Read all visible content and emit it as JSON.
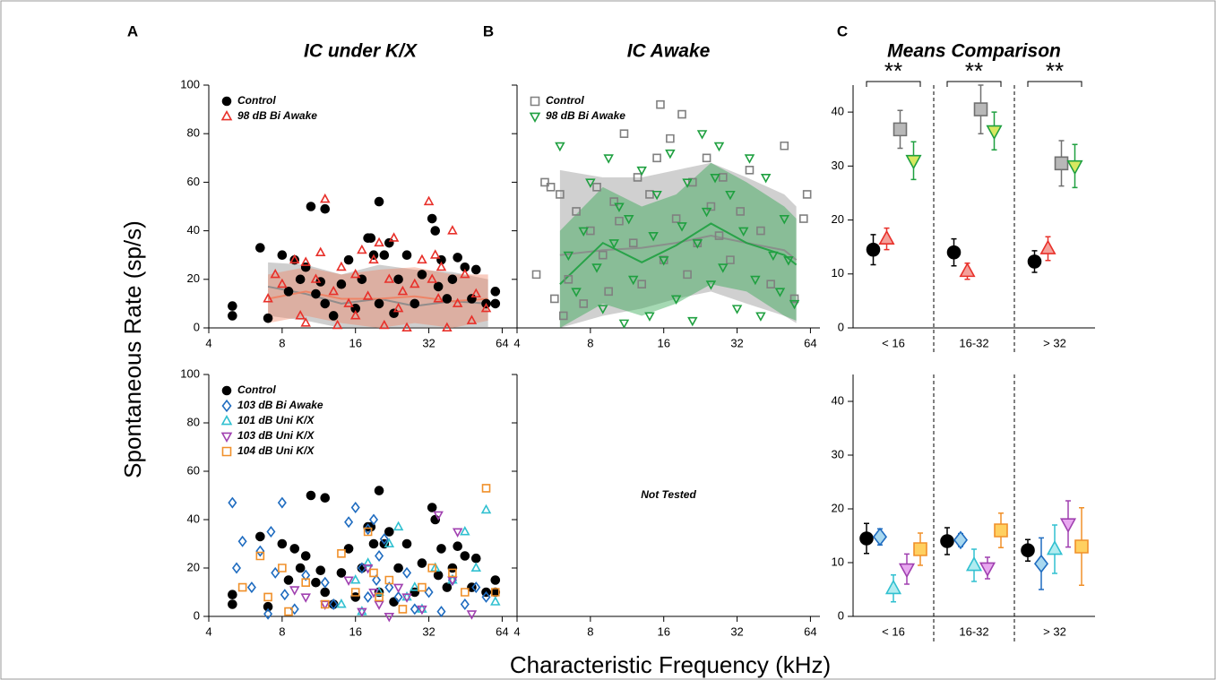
{
  "figure": {
    "ylabel": "Spontaneous Rate (sp/s)",
    "xlabel": "Characteristic Frequency (kHz)"
  },
  "chart_data": [
    {
      "type": "scatter",
      "panel_label": "A",
      "title": "IC under K/X",
      "xscale": "log",
      "xlim": [
        4,
        70
      ],
      "xticks": [
        4,
        8,
        16,
        32,
        64
      ],
      "ylim": [
        0,
        100
      ],
      "yticks": [
        0,
        20,
        40,
        60,
        80,
        100
      ],
      "legend": "upper left",
      "bands": [
        {
          "color": "#888888",
          "x": [
            7,
            10,
            14,
            20,
            28,
            40,
            56
          ],
          "values": [
            17,
            14,
            10,
            12,
            9,
            11,
            10
          ],
          "lower": [
            5,
            3,
            0,
            0,
            0,
            0,
            0
          ],
          "upper": [
            27,
            26,
            22,
            26,
            24,
            23,
            20
          ]
        },
        {
          "color": "#f08060",
          "x": [
            7,
            10,
            14,
            20,
            28,
            40,
            56
          ],
          "values": [
            12,
            15,
            12,
            12,
            13,
            11,
            12
          ],
          "lower": [
            2,
            5,
            2,
            0,
            2,
            0,
            3
          ],
          "upper": [
            22,
            25,
            22,
            24,
            25,
            22,
            22
          ]
        }
      ],
      "series": [
        {
          "name": "Control",
          "marker": "circle",
          "color": "#000000",
          "facecolor": "#000000",
          "x": [
            5,
            5,
            6.5,
            7,
            8,
            8.5,
            9,
            9.5,
            10,
            10.5,
            11,
            11.5,
            12,
            12,
            13,
            14,
            15,
            16,
            17,
            18,
            18.5,
            19,
            20,
            20,
            21,
            22,
            23,
            24,
            26,
            28,
            30,
            33,
            34,
            35,
            36,
            38,
            40,
            42,
            45,
            48,
            50,
            55,
            60,
            60
          ],
          "values": [
            9,
            5,
            33,
            4,
            30,
            15,
            28,
            20,
            25,
            50,
            14,
            19,
            49,
            10,
            5,
            18,
            28,
            8,
            20,
            37,
            37,
            30,
            52,
            10,
            30,
            35,
            6,
            20,
            30,
            10,
            22,
            45,
            40,
            17,
            28,
            12,
            20,
            29,
            25,
            12,
            24,
            10,
            15,
            10
          ]
        },
        {
          "name": "98 dB Bi Awake",
          "marker": "triangle-up",
          "color": "#e8302a",
          "facecolor": "none",
          "x": [
            7,
            7.5,
            8,
            9,
            9.5,
            10,
            10,
            11,
            11.5,
            12,
            13,
            13.5,
            14,
            15,
            16,
            16,
            17,
            18,
            19,
            20,
            21,
            22,
            23,
            24,
            25,
            26,
            28,
            30,
            32,
            33,
            34,
            35,
            36,
            38,
            40,
            42,
            45,
            48,
            50,
            55
          ],
          "values": [
            12,
            22,
            18,
            28,
            5,
            27,
            2,
            20,
            31,
            53,
            15,
            1,
            25,
            10,
            22,
            5,
            32,
            13,
            28,
            35,
            1,
            20,
            37,
            8,
            15,
            0,
            18,
            28,
            52,
            20,
            30,
            12,
            25,
            0,
            40,
            10,
            22,
            3,
            14,
            8
          ]
        }
      ]
    },
    {
      "type": "scatter",
      "panel_label": "B",
      "title": "IC Awake",
      "xscale": "log",
      "xlim": [
        4,
        70
      ],
      "xticks": [
        4,
        8,
        16,
        32,
        64
      ],
      "ylim": [
        0,
        100
      ],
      "yticks": [
        0,
        20,
        40,
        60,
        80,
        100
      ],
      "ytick_labels": false,
      "legend": "upper left",
      "bands": [
        {
          "color": "#8a8a8a",
          "x": [
            6,
            9,
            13,
            18,
            25,
            35,
            50,
            56
          ],
          "values": [
            30,
            32,
            33,
            35,
            38,
            35,
            32,
            28
          ],
          "lower": [
            0,
            5,
            8,
            12,
            15,
            10,
            5,
            2
          ],
          "upper": [
            65,
            62,
            62,
            65,
            68,
            62,
            55,
            50
          ]
        },
        {
          "color": "#1fa040",
          "x": [
            6,
            9,
            13,
            18,
            25,
            35,
            50,
            56
          ],
          "values": [
            18,
            35,
            27,
            34,
            43,
            35,
            30,
            26
          ],
          "lower": [
            0,
            10,
            5,
            10,
            18,
            15,
            5,
            3
          ],
          "upper": [
            40,
            58,
            50,
            55,
            68,
            60,
            50,
            45
          ]
        }
      ],
      "series": [
        {
          "name": "Control",
          "marker": "square",
          "color": "#808080",
          "facecolor": "none",
          "x": [
            4.8,
            5.2,
            5.5,
            5.7,
            6,
            6.2,
            6.5,
            7,
            7.5,
            8,
            8.5,
            9,
            9.5,
            10,
            10.5,
            11,
            12,
            12.5,
            13,
            14,
            15,
            15.5,
            16,
            17,
            18,
            19,
            20,
            21,
            22,
            24,
            25,
            27,
            28,
            30,
            33,
            36,
            40,
            44,
            50,
            55,
            60,
            62
          ],
          "values": [
            22,
            60,
            58,
            12,
            55,
            5,
            20,
            48,
            10,
            40,
            58,
            30,
            15,
            52,
            44,
            80,
            35,
            62,
            18,
            55,
            70,
            92,
            28,
            78,
            45,
            88,
            22,
            60,
            35,
            70,
            50,
            38,
            62,
            28,
            48,
            65,
            40,
            18,
            75,
            12,
            45,
            55
          ]
        },
        {
          "name": "98 dB Bi Awake",
          "marker": "triangle-down",
          "color": "#1fa040",
          "facecolor": "none",
          "x": [
            6,
            6.5,
            7,
            7.5,
            8,
            8.5,
            9,
            9.5,
            10,
            10.5,
            11,
            11.5,
            12,
            13,
            14,
            14.5,
            15,
            16,
            17,
            18,
            19,
            20,
            21,
            22,
            23,
            24,
            25,
            26,
            27,
            28,
            30,
            32,
            34,
            36,
            38,
            40,
            42,
            45,
            48,
            50,
            52,
            55
          ],
          "values": [
            75,
            30,
            15,
            40,
            60,
            25,
            8,
            70,
            35,
            50,
            2,
            45,
            20,
            65,
            5,
            38,
            55,
            28,
            72,
            12,
            42,
            60,
            3,
            35,
            80,
            48,
            18,
            62,
            75,
            25,
            55,
            8,
            40,
            70,
            20,
            5,
            62,
            30,
            15,
            45,
            28,
            10
          ]
        }
      ]
    },
    {
      "type": "means",
      "panel_label": "C",
      "title": "Means Comparison",
      "categories": [
        "< 16",
        "16-32",
        "> 32"
      ],
      "ylim": [
        0,
        45
      ],
      "yticks": [
        0,
        10,
        20,
        30,
        40
      ],
      "significance": [
        "**",
        "**",
        "**"
      ],
      "series": [
        {
          "marker": "circle",
          "color": "#000000",
          "facecolor": "#000000",
          "values": [
            14.5,
            14,
            12.3
          ],
          "errors": [
            2.8,
            2.5,
            2
          ]
        },
        {
          "marker": "triangle-up",
          "color": "#e8302a",
          "facecolor": "#f4a09a",
          "values": [
            16.5,
            10.5,
            14.7
          ],
          "errors": [
            2,
            1.5,
            2.2
          ]
        },
        {
          "marker": "square",
          "color": "#707070",
          "facecolor": "#b8b8b8",
          "values": [
            36.8,
            40.5,
            30.5
          ],
          "errors": [
            3.5,
            4.5,
            4.2
          ]
        },
        {
          "marker": "triangle-down",
          "color": "#1fa040",
          "facecolor": "#d8e860",
          "values": [
            31,
            36.5,
            30
          ],
          "errors": [
            3.5,
            3.5,
            4
          ]
        }
      ]
    },
    {
      "type": "scatter",
      "xscale": "log",
      "xlim": [
        4,
        70
      ],
      "xticks": [
        4,
        8,
        16,
        32,
        64
      ],
      "ylim": [
        0,
        100
      ],
      "yticks": [
        0,
        20,
        40,
        60,
        80,
        100
      ],
      "legend": "upper left",
      "series": [
        {
          "name": "Control",
          "marker": "circle",
          "color": "#000000",
          "facecolor": "#000000",
          "x": [
            5,
            5,
            6.5,
            7,
            8,
            8.5,
            9,
            9.5,
            10,
            10.5,
            11,
            11.5,
            12,
            12,
            13,
            14,
            15,
            16,
            17,
            18,
            18.5,
            19,
            20,
            20,
            21,
            22,
            23,
            24,
            26,
            28,
            30,
            33,
            34,
            35,
            36,
            38,
            40,
            42,
            45,
            48,
            50,
            55,
            60,
            60
          ],
          "values": [
            9,
            5,
            33,
            4,
            30,
            15,
            28,
            20,
            25,
            50,
            14,
            19,
            49,
            10,
            5,
            18,
            28,
            8,
            20,
            37,
            37,
            30,
            52,
            10,
            30,
            35,
            6,
            20,
            30,
            10,
            22,
            45,
            40,
            17,
            28,
            12,
            20,
            29,
            25,
            12,
            24,
            10,
            15,
            10
          ]
        },
        {
          "name": "103 dB Bi Awake",
          "marker": "diamond",
          "color": "#1f6cc0",
          "facecolor": "none",
          "x": [
            5,
            5.2,
            5.5,
            6,
            6.5,
            7,
            7.2,
            7.5,
            8,
            8.2,
            9,
            10,
            12,
            13,
            15,
            16,
            17,
            18,
            18,
            19,
            19.5,
            20,
            21,
            22,
            24,
            26,
            28,
            32,
            36,
            40,
            45,
            50,
            55
          ],
          "values": [
            47,
            20,
            31,
            12,
            27,
            1,
            35,
            18,
            47,
            9,
            3,
            17,
            14,
            5,
            39,
            45,
            20,
            36,
            8,
            40,
            15,
            25,
            32,
            12,
            8,
            18,
            3,
            10,
            2,
            15,
            5,
            12,
            8
          ]
        },
        {
          "name": "101 dB Uni K/X",
          "marker": "triangle-up",
          "color": "#30c0d0",
          "facecolor": "none",
          "x": [
            14,
            16,
            17,
            18,
            20,
            22,
            24,
            26,
            28,
            30,
            34,
            40,
            45,
            50,
            55,
            60
          ],
          "values": [
            5,
            15,
            2,
            22,
            10,
            30,
            37,
            8,
            12,
            3,
            20,
            15,
            35,
            20,
            44,
            6
          ]
        },
        {
          "name": "103 dB Uni K/X",
          "marker": "triangle-down",
          "color": "#a040b0",
          "facecolor": "none",
          "x": [
            9,
            10,
            12,
            15,
            17,
            18,
            19,
            20,
            22,
            24,
            26,
            30,
            35,
            40,
            42,
            48
          ],
          "values": [
            11,
            8,
            5,
            15,
            2,
            20,
            10,
            5,
            0,
            12,
            8,
            3,
            42,
            15,
            35,
            1
          ]
        },
        {
          "name": "104 dB Uni K/X",
          "marker": "square",
          "color": "#f0902a",
          "facecolor": "none",
          "x": [
            5.5,
            6.5,
            7,
            8,
            8.5,
            10,
            12,
            14,
            16,
            18,
            19,
            20,
            22,
            25,
            30,
            33,
            40,
            45,
            55,
            60
          ],
          "values": [
            12,
            25,
            8,
            20,
            2,
            14,
            5,
            26,
            10,
            35,
            18,
            8,
            15,
            3,
            12,
            20,
            18,
            10,
            53,
            10
          ]
        }
      ]
    },
    {
      "type": "scatter",
      "xscale": "log",
      "xlim": [
        4,
        70
      ],
      "xticks": [
        4,
        8,
        16,
        32,
        64
      ],
      "ylim": [
        0,
        100
      ],
      "yticks": [
        0,
        20,
        40,
        60,
        80,
        100
      ],
      "ytick_labels": false,
      "annotation": "Not Tested",
      "series": []
    },
    {
      "type": "means",
      "categories": [
        "< 16",
        "16-32",
        "> 32"
      ],
      "ylim": [
        0,
        45
      ],
      "yticks": [
        0,
        10,
        20,
        30,
        40
      ],
      "series": [
        {
          "marker": "circle",
          "color": "#000000",
          "facecolor": "#000000",
          "values": [
            14.5,
            14,
            12.3
          ],
          "errors": [
            2.8,
            2.5,
            2
          ]
        },
        {
          "marker": "diamond",
          "color": "#1f6cc0",
          "facecolor": "#a8d8f0",
          "values": [
            14.8,
            14.2,
            9.8
          ],
          "errors": [
            1.5,
            1.2,
            4.8
          ]
        },
        {
          "marker": "triangle-up",
          "color": "#30c0d0",
          "facecolor": "#b0ecf0",
          "values": [
            5.2,
            9.5,
            12.5
          ],
          "errors": [
            2.5,
            3,
            4.5
          ]
        },
        {
          "marker": "triangle-down",
          "color": "#a040b0",
          "facecolor": "#e8a8f0",
          "values": [
            8.8,
            9,
            17.2
          ],
          "errors": [
            2.8,
            2,
            4.3
          ]
        },
        {
          "marker": "square",
          "color": "#f0902a",
          "facecolor": "#ffd060",
          "values": [
            12.5,
            16,
            13
          ],
          "errors": [
            3,
            3.2,
            7.2
          ]
        }
      ]
    }
  ]
}
